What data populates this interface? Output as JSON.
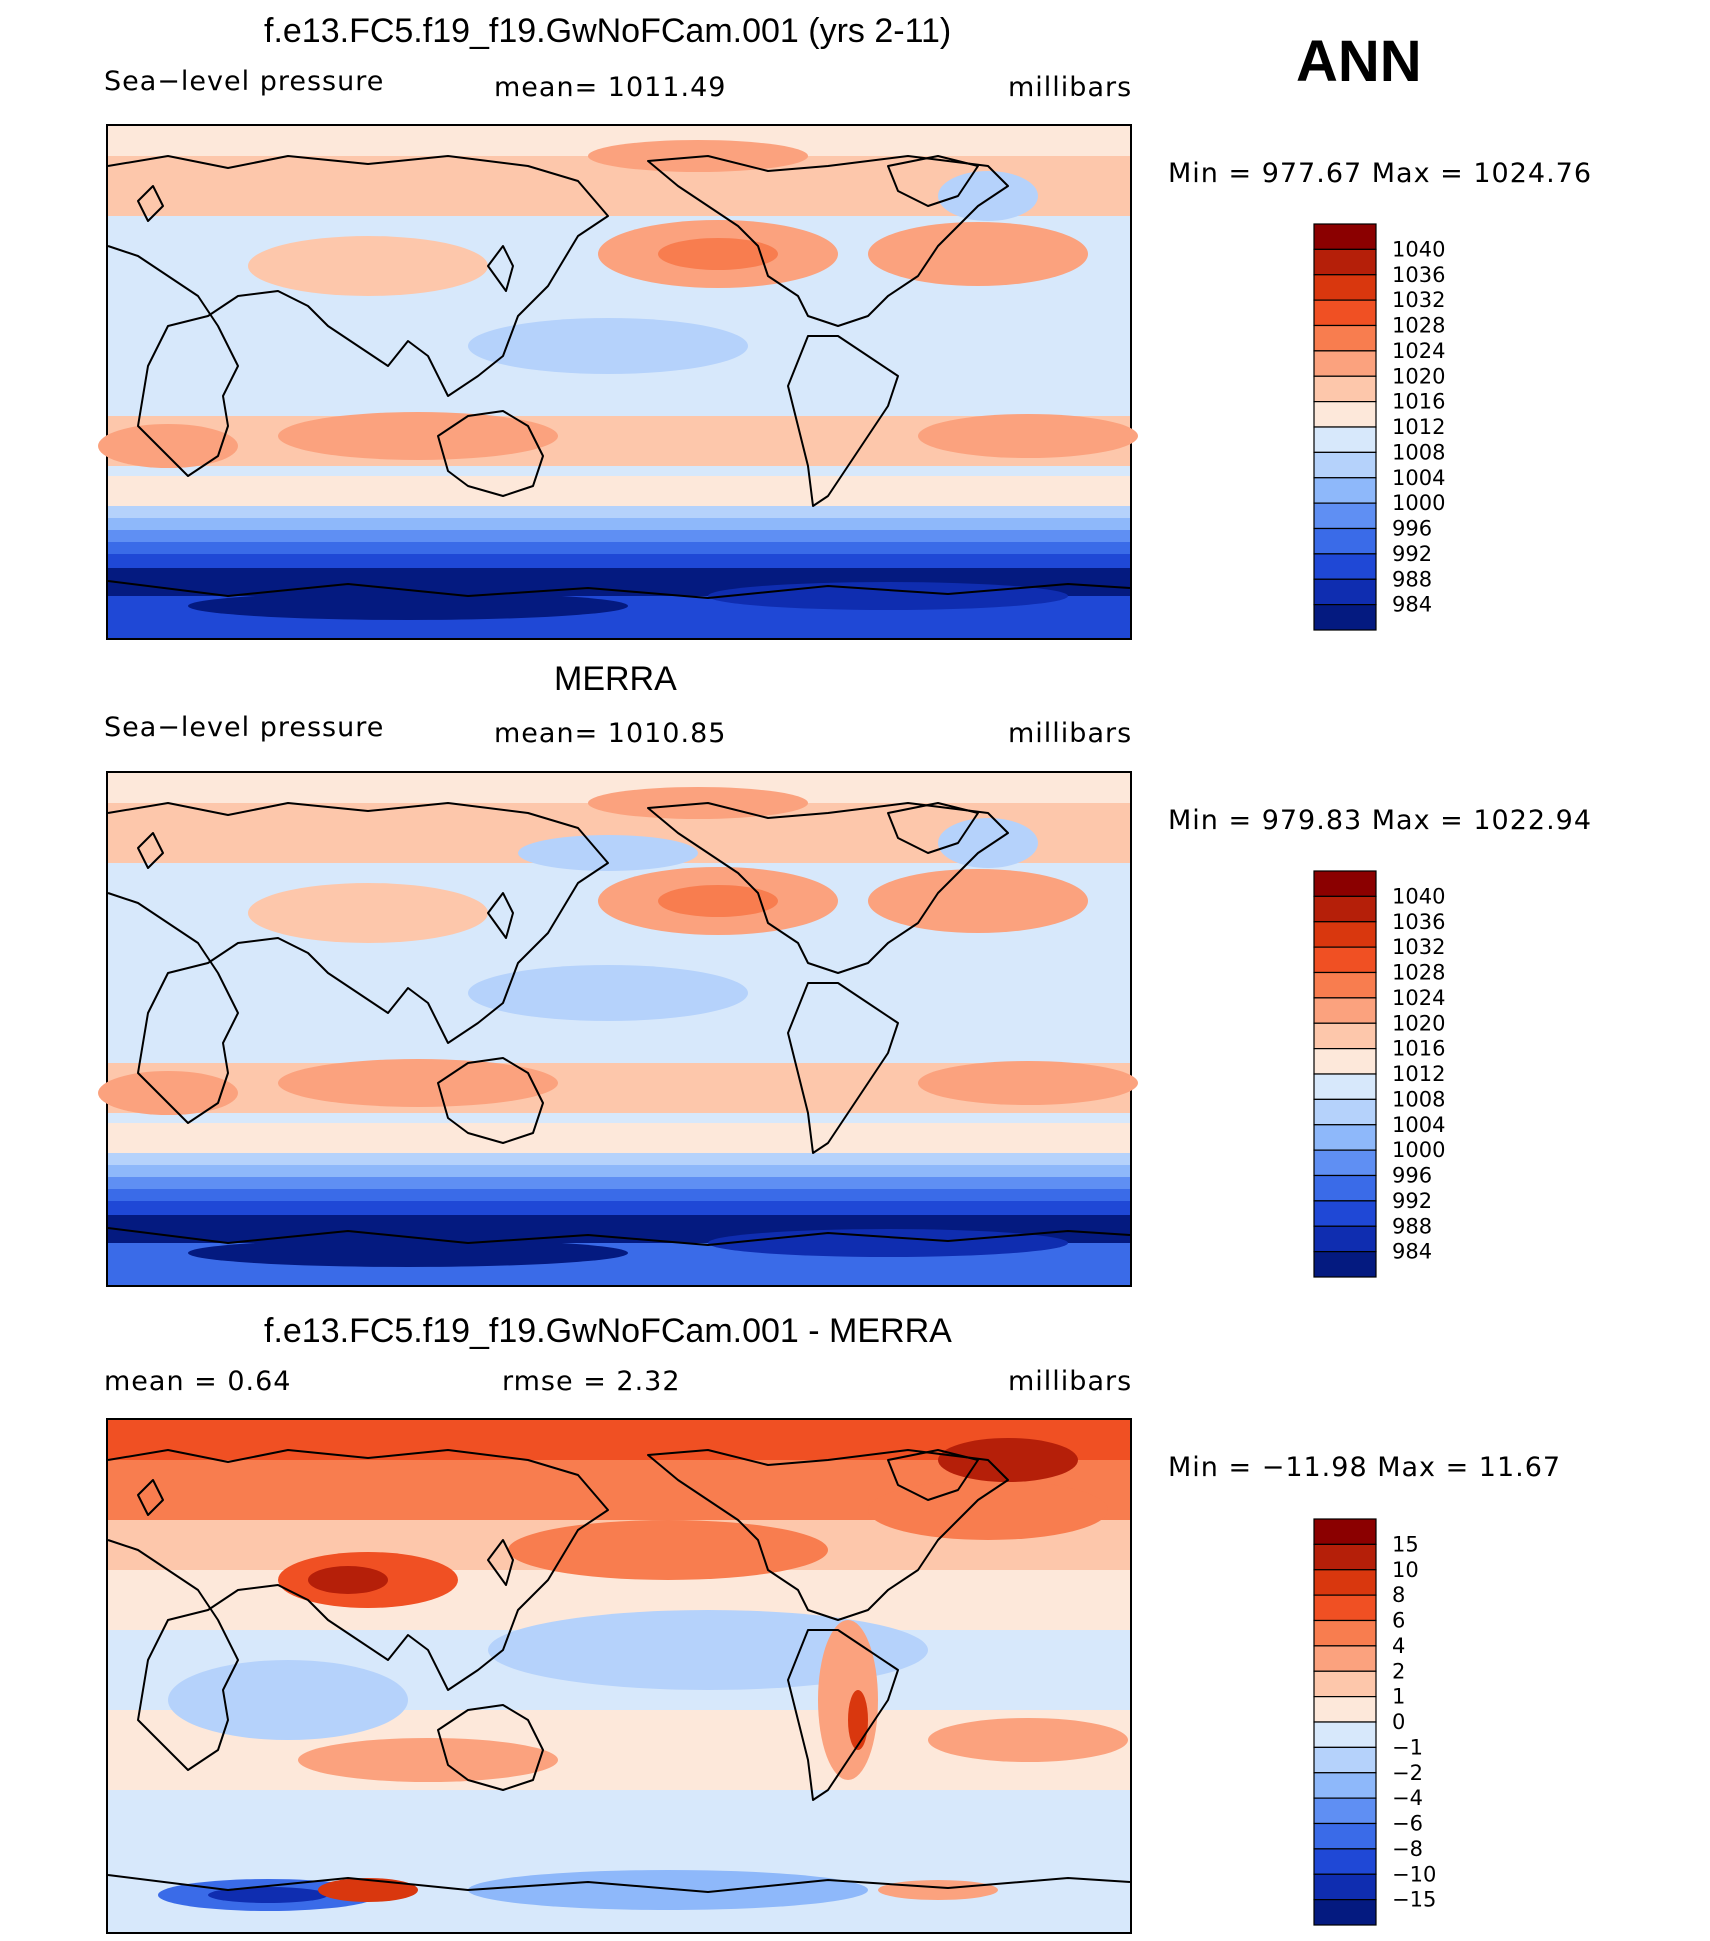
{
  "season": "ANN",
  "panels": [
    {
      "title": "f.e13.FC5.f19_f19.GwNoFCam.001 (yrs 2-11)",
      "left_label": "Sea−level pressure",
      "center_label": "mean=  1011.49",
      "right_label": "millibars",
      "minmax": "Min  =  977.67  Max  =  1024.76",
      "colorbar_labels": [
        "1040",
        "1036",
        "1032",
        "1028",
        "1024",
        "1020",
        "1016",
        "1012",
        "1008",
        "1004",
        "1000",
        "996",
        "992",
        "988",
        "984"
      ],
      "colorbar_colors": [
        "#8b0000",
        "#b51f09",
        "#d9370e",
        "#f05023",
        "#f87d4f",
        "#fba27e",
        "#fdc7ab",
        "#fde8da",
        "#d7e8fb",
        "#b5d2fb",
        "#8eb8fa",
        "#5f8ff3",
        "#3a6be8",
        "#1f48d6",
        "#0f2db0",
        "#041a80"
      ]
    },
    {
      "title": "MERRA",
      "left_label": "Sea−level pressure",
      "center_label": "mean=  1010.85",
      "right_label": "millibars",
      "minmax": "Min  =  979.83  Max  =  1022.94",
      "colorbar_labels": [
        "1040",
        "1036",
        "1032",
        "1028",
        "1024",
        "1020",
        "1016",
        "1012",
        "1008",
        "1004",
        "1000",
        "996",
        "992",
        "988",
        "984"
      ],
      "colorbar_colors": [
        "#8b0000",
        "#b51f09",
        "#d9370e",
        "#f05023",
        "#f87d4f",
        "#fba27e",
        "#fdc7ab",
        "#fde8da",
        "#d7e8fb",
        "#b5d2fb",
        "#8eb8fa",
        "#5f8ff3",
        "#3a6be8",
        "#1f48d6",
        "#0f2db0",
        "#041a80"
      ]
    },
    {
      "title": "f.e13.FC5.f19_f19.GwNoFCam.001 - MERRA",
      "left_label": "mean  =      0.64",
      "center_label": "rmse  =      2.32",
      "right_label": "millibars",
      "minmax": "Min  =  −11.98  Max  =      11.67",
      "colorbar_labels": [
        "15",
        "10",
        "8",
        "6",
        "4",
        "2",
        "1",
        "0",
        "−1",
        "−2",
        "−4",
        "−6",
        "−8",
        "−10",
        "−15"
      ],
      "colorbar_colors": [
        "#8b0000",
        "#b51f09",
        "#d9370e",
        "#f05023",
        "#f87d4f",
        "#fba27e",
        "#fdc7ab",
        "#fde8da",
        "#d7e8fb",
        "#b5d2fb",
        "#8eb8fa",
        "#5f8ff3",
        "#3a6be8",
        "#1f48d6",
        "#0f2db0",
        "#041a80"
      ]
    }
  ],
  "chart_data": [
    {
      "type": "heatmap",
      "title": "f.e13.FC5.f19_f19.GwNoFCam.001 (yrs 2-11)",
      "variable": "Sea−level pressure",
      "units": "millibars",
      "mean": 1011.49,
      "min": 977.67,
      "max": 1024.76,
      "levels": [
        984,
        988,
        992,
        996,
        1000,
        1004,
        1008,
        1012,
        1016,
        1020,
        1024,
        1028,
        1032,
        1036,
        1040
      ]
    },
    {
      "type": "heatmap",
      "title": "MERRA",
      "variable": "Sea−level pressure",
      "units": "millibars",
      "mean": 1010.85,
      "min": 979.83,
      "max": 1022.94,
      "levels": [
        984,
        988,
        992,
        996,
        1000,
        1004,
        1008,
        1012,
        1016,
        1020,
        1024,
        1028,
        1032,
        1036,
        1040
      ]
    },
    {
      "type": "heatmap",
      "title": "f.e13.FC5.f19_f19.GwNoFCam.001 - MERRA",
      "units": "millibars",
      "mean": 0.64,
      "rmse": 2.32,
      "min": -11.98,
      "max": 11.67,
      "levels": [
        -15,
        -10,
        -8,
        -6,
        -4,
        -2,
        -1,
        0,
        1,
        2,
        4,
        6,
        8,
        10,
        15
      ]
    }
  ]
}
